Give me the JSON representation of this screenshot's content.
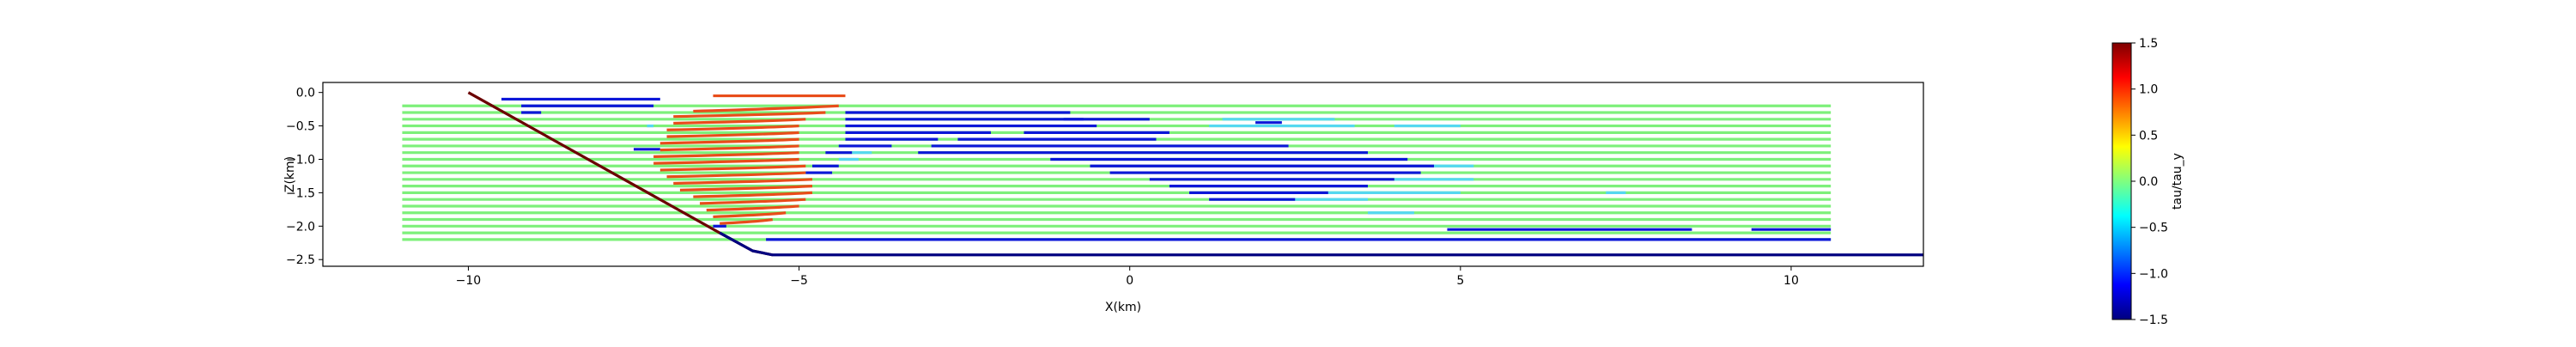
{
  "chart_data": {
    "type": "line",
    "title": "",
    "xlabel": "X(km)",
    "ylabel": "Z(km)",
    "xlim": [
      -12.2,
      12.0
    ],
    "ylim": [
      -2.6,
      0.15
    ],
    "x_ticks": [
      -10,
      -5,
      0,
      5,
      10
    ],
    "y_ticks": [
      0.0,
      -0.5,
      -1.0,
      -1.5,
      -2.0,
      -2.5
    ],
    "x_tick_labels": [
      "−10",
      "−5",
      "0",
      "5",
      "10"
    ],
    "y_tick_labels": [
      "0.0",
      "−0.5",
      "−1.0",
      "−1.5",
      "−2.0",
      "−2.5"
    ],
    "grid": false,
    "colorbar": {
      "label": "tau/tau_y",
      "colormap": "jet",
      "range": [
        -1.5,
        1.5
      ],
      "ticks": [
        1.5,
        1.0,
        0.5,
        0.0,
        -0.5,
        -1.0,
        -1.5
      ],
      "tick_labels": [
        "1.5",
        "1.0",
        "0.5",
        "0.0",
        "−0.5",
        "−1.0",
        "−1.5"
      ]
    },
    "colors": {
      "fault": "#6b0000",
      "basement": "#000080",
      "green": "#7df07a",
      "red": "#e84d1a",
      "blue": "#0b17d8",
      "cyan": "#55d8f0"
    },
    "boundaries": [
      {
        "kind": "fault",
        "x": [
          -10.0,
          -6.2,
          -5.7,
          -5.4
        ],
        "z": [
          0.0,
          -2.1,
          -2.37,
          -2.43
        ]
      },
      {
        "kind": "basement",
        "x": [
          -6.2,
          -5.7,
          -5.4,
          12.0
        ],
        "z": [
          -2.1,
          -2.37,
          -2.43,
          -2.43
        ]
      }
    ],
    "layers_z": [
      -0.2,
      -0.3,
      -0.4,
      -0.5,
      -0.6,
      -0.7,
      -0.8,
      -0.9,
      -1.0,
      -1.1,
      -1.2,
      -1.3,
      -1.4,
      -1.5,
      -1.6,
      -1.7,
      -1.8,
      -1.9,
      -2.0,
      -2.1,
      -2.2
    ],
    "layers_x_range": [
      -11.0,
      10.6
    ],
    "blue_segments": [
      {
        "z": -0.1,
        "x": [
          -9.5,
          -7.1
        ]
      },
      {
        "z": -0.2,
        "x": [
          -9.2,
          -7.2
        ]
      },
      {
        "z": -0.3,
        "x": [
          -9.2,
          -8.9
        ]
      },
      {
        "z": -0.85,
        "x": [
          -7.5,
          -7.1
        ]
      },
      {
        "z": -2.0,
        "x": [
          -6.3,
          -6.1
        ]
      },
      {
        "z": -0.3,
        "x": [
          -4.3,
          -0.9
        ]
      },
      {
        "z": -0.4,
        "x": [
          -4.3,
          -0.7
        ]
      },
      {
        "z": -0.5,
        "x": [
          -4.3,
          -0.5
        ]
      },
      {
        "z": -0.6,
        "x": [
          -4.3,
          -2.1
        ]
      },
      {
        "z": -0.7,
        "x": [
          -4.3,
          -2.9
        ]
      },
      {
        "z": -0.8,
        "x": [
          -4.4,
          -3.6
        ]
      },
      {
        "z": -0.9,
        "x": [
          -4.6,
          -4.2
        ]
      },
      {
        "z": -1.1,
        "x": [
          -4.8,
          -4.4
        ]
      },
      {
        "z": -1.2,
        "x": [
          -4.9,
          -4.5
        ]
      },
      {
        "z": -0.4,
        "x": [
          -1.0,
          0.3
        ]
      },
      {
        "z": -0.6,
        "x": [
          -1.6,
          0.6
        ]
      },
      {
        "z": -0.7,
        "x": [
          -2.6,
          0.4
        ]
      },
      {
        "z": -0.8,
        "x": [
          -3.0,
          2.4
        ]
      },
      {
        "z": -0.9,
        "x": [
          -3.2,
          3.6
        ]
      },
      {
        "z": -1.0,
        "x": [
          -1.2,
          4.2
        ]
      },
      {
        "z": -1.1,
        "x": [
          -0.6,
          4.6
        ]
      },
      {
        "z": -1.2,
        "x": [
          -0.3,
          4.4
        ]
      },
      {
        "z": -1.3,
        "x": [
          0.3,
          4.0
        ]
      },
      {
        "z": -1.4,
        "x": [
          0.6,
          3.6
        ]
      },
      {
        "z": -1.5,
        "x": [
          0.9,
          3.0
        ]
      },
      {
        "z": -1.6,
        "x": [
          1.2,
          2.5
        ]
      },
      {
        "z": -0.45,
        "x": [
          1.9,
          2.3
        ]
      },
      {
        "z": -2.05,
        "x": [
          4.8,
          8.5
        ]
      },
      {
        "z": -2.05,
        "x": [
          9.4,
          10.6
        ]
      },
      {
        "z": -2.2,
        "x": [
          -5.5,
          10.6
        ]
      }
    ],
    "cyan_segments": [
      {
        "z": -0.5,
        "x": [
          -7.3,
          -7.2
        ]
      },
      {
        "z": -0.9,
        "x": [
          -4.2,
          -3.9
        ]
      },
      {
        "z": -1.0,
        "x": [
          -4.4,
          -4.1
        ]
      },
      {
        "z": -0.4,
        "x": [
          1.4,
          3.1
        ]
      },
      {
        "z": -0.5,
        "x": [
          1.2,
          3.4
        ]
      },
      {
        "z": -1.1,
        "x": [
          4.6,
          5.2
        ]
      },
      {
        "z": -1.3,
        "x": [
          4.0,
          5.2
        ]
      },
      {
        "z": -1.5,
        "x": [
          3.0,
          5.0
        ]
      },
      {
        "z": -1.6,
        "x": [
          1.8,
          3.6
        ]
      },
      {
        "z": -1.8,
        "x": [
          3.6,
          4.3
        ]
      },
      {
        "z": -0.5,
        "x": [
          4.0,
          5.0
        ]
      },
      {
        "z": -1.5,
        "x": [
          7.2,
          7.5
        ]
      }
    ],
    "red_layers": [
      {
        "z": -0.05,
        "left": [
          -6.3,
          -0.05
        ],
        "right": [
          -4.3,
          -0.05
        ],
        "bulge": 0.0
      },
      {
        "z": -0.2,
        "left": [
          -6.6,
          -0.28
        ],
        "right": [
          -4.4,
          -0.2
        ],
        "bulge": 0.3
      },
      {
        "z": -0.3,
        "left": [
          -6.9,
          -0.36
        ],
        "right": [
          -4.6,
          -0.3
        ],
        "bulge": 0.4
      },
      {
        "z": -0.4,
        "left": [
          -6.9,
          -0.46
        ],
        "right": [
          -4.9,
          -0.4
        ],
        "bulge": 0.45
      },
      {
        "z": -0.5,
        "left": [
          -7.0,
          -0.56
        ],
        "right": [
          -5.0,
          -0.5
        ],
        "bulge": 0.45
      },
      {
        "z": -0.6,
        "left": [
          -7.0,
          -0.66
        ],
        "right": [
          -5.0,
          -0.6
        ],
        "bulge": 0.45
      },
      {
        "z": -0.7,
        "left": [
          -7.1,
          -0.76
        ],
        "right": [
          -5.0,
          -0.7
        ],
        "bulge": 0.45
      },
      {
        "z": -0.8,
        "left": [
          -7.1,
          -0.86
        ],
        "right": [
          -5.0,
          -0.8
        ],
        "bulge": 0.45
      },
      {
        "z": -0.9,
        "left": [
          -7.2,
          -0.96
        ],
        "right": [
          -5.0,
          -0.9
        ],
        "bulge": 0.45
      },
      {
        "z": -1.0,
        "left": [
          -7.2,
          -1.06
        ],
        "right": [
          -5.0,
          -1.0
        ],
        "bulge": 0.45
      },
      {
        "z": -1.1,
        "left": [
          -7.1,
          -1.16
        ],
        "right": [
          -4.9,
          -1.1
        ],
        "bulge": 0.45
      },
      {
        "z": -1.2,
        "left": [
          -7.0,
          -1.26
        ],
        "right": [
          -4.9,
          -1.2
        ],
        "bulge": 0.45
      },
      {
        "z": -1.3,
        "left": [
          -6.9,
          -1.36
        ],
        "right": [
          -4.8,
          -1.3
        ],
        "bulge": 0.4
      },
      {
        "z": -1.4,
        "left": [
          -6.8,
          -1.46
        ],
        "right": [
          -4.8,
          -1.4
        ],
        "bulge": 0.4
      },
      {
        "z": -1.5,
        "left": [
          -6.6,
          -1.56
        ],
        "right": [
          -4.8,
          -1.5
        ],
        "bulge": 0.35
      },
      {
        "z": -1.6,
        "left": [
          -6.5,
          -1.66
        ],
        "right": [
          -4.9,
          -1.6
        ],
        "bulge": 0.3
      },
      {
        "z": -1.7,
        "left": [
          -6.4,
          -1.76
        ],
        "right": [
          -5.0,
          -1.7
        ],
        "bulge": 0.3
      },
      {
        "z": -1.8,
        "left": [
          -6.3,
          -1.86
        ],
        "right": [
          -5.2,
          -1.8
        ],
        "bulge": 0.25
      },
      {
        "z": -1.9,
        "left": [
          -6.2,
          -1.96
        ],
        "right": [
          -5.4,
          -1.9
        ],
        "bulge": 0.2
      }
    ]
  }
}
